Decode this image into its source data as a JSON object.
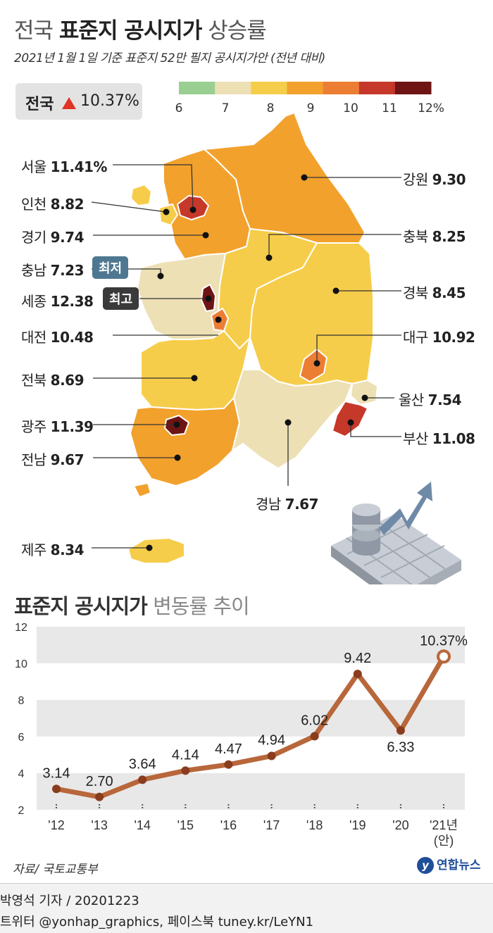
{
  "header": {
    "title_prefix": "전국",
    "title_bold": "표준지 공시지가",
    "title_suffix": "상승률",
    "subtitle": "2021년 1월 1일 기준 표준지 52만 필지 공시지가안 (전년 대비)"
  },
  "national": {
    "label": "전국",
    "value": "10.37%"
  },
  "legend": {
    "labels": [
      "6",
      "7",
      "8",
      "9",
      "10",
      "11",
      "12%"
    ],
    "colors": [
      "#99cf90",
      "#ede0b5",
      "#f6cd4a",
      "#f2a12d",
      "#ec7e34",
      "#c6382a",
      "#6e1414"
    ]
  },
  "map": {
    "regions": [
      {
        "name": "서울",
        "value": "11.41%"
      },
      {
        "name": "인천",
        "value": "8.82"
      },
      {
        "name": "경기",
        "value": "9.74"
      },
      {
        "name": "충남",
        "value": "7.23"
      },
      {
        "name": "세종",
        "value": "12.38"
      },
      {
        "name": "대전",
        "value": "10.48"
      },
      {
        "name": "전북",
        "value": "8.69"
      },
      {
        "name": "광주",
        "value": "11.39"
      },
      {
        "name": "전남",
        "value": "9.67"
      },
      {
        "name": "제주",
        "value": "8.34"
      },
      {
        "name": "강원",
        "value": "9.30"
      },
      {
        "name": "충북",
        "value": "8.25"
      },
      {
        "name": "경북",
        "value": "8.45"
      },
      {
        "name": "대구",
        "value": "10.92"
      },
      {
        "name": "울산",
        "value": "7.54"
      },
      {
        "name": "부산",
        "value": "11.08"
      },
      {
        "name": "경남",
        "value": "7.67"
      }
    ],
    "lowest_tag": "최저",
    "highest_tag": "최고",
    "lowest_color": "#4e7891",
    "highest_color": "#3a3a3a"
  },
  "chart_title_bold": "표준지 공시지가",
  "chart_title_light": "변동률 추이",
  "chart_data": {
    "type": "line",
    "categories": [
      "'12",
      "'13",
      "'14",
      "'15",
      "'16",
      "'17",
      "'18",
      "'19",
      "'20",
      "'21년 (안)"
    ],
    "values": [
      3.14,
      2.7,
      3.64,
      4.14,
      4.47,
      4.94,
      6.02,
      9.42,
      6.33,
      10.37
    ],
    "value_labels": [
      "3.14",
      "2.70",
      "3.64",
      "4.14",
      "4.47",
      "4.94",
      "6.02",
      "9.42",
      "6.33",
      "10.37%"
    ],
    "y_ticks": [
      "2",
      "4",
      "6",
      "8",
      "10",
      "12"
    ],
    "ylim": [
      2,
      12
    ],
    "line_color": "#b8673b",
    "band_color": "#e8e8e8"
  },
  "source": "자료/ 국토교통부",
  "logo_text": "연합뉴스",
  "footer": {
    "line1": "박영석 기자 /  20201223",
    "line2": "트위터 @yonhap_graphics, 페이스북 tuney.kr/LeYN1"
  }
}
